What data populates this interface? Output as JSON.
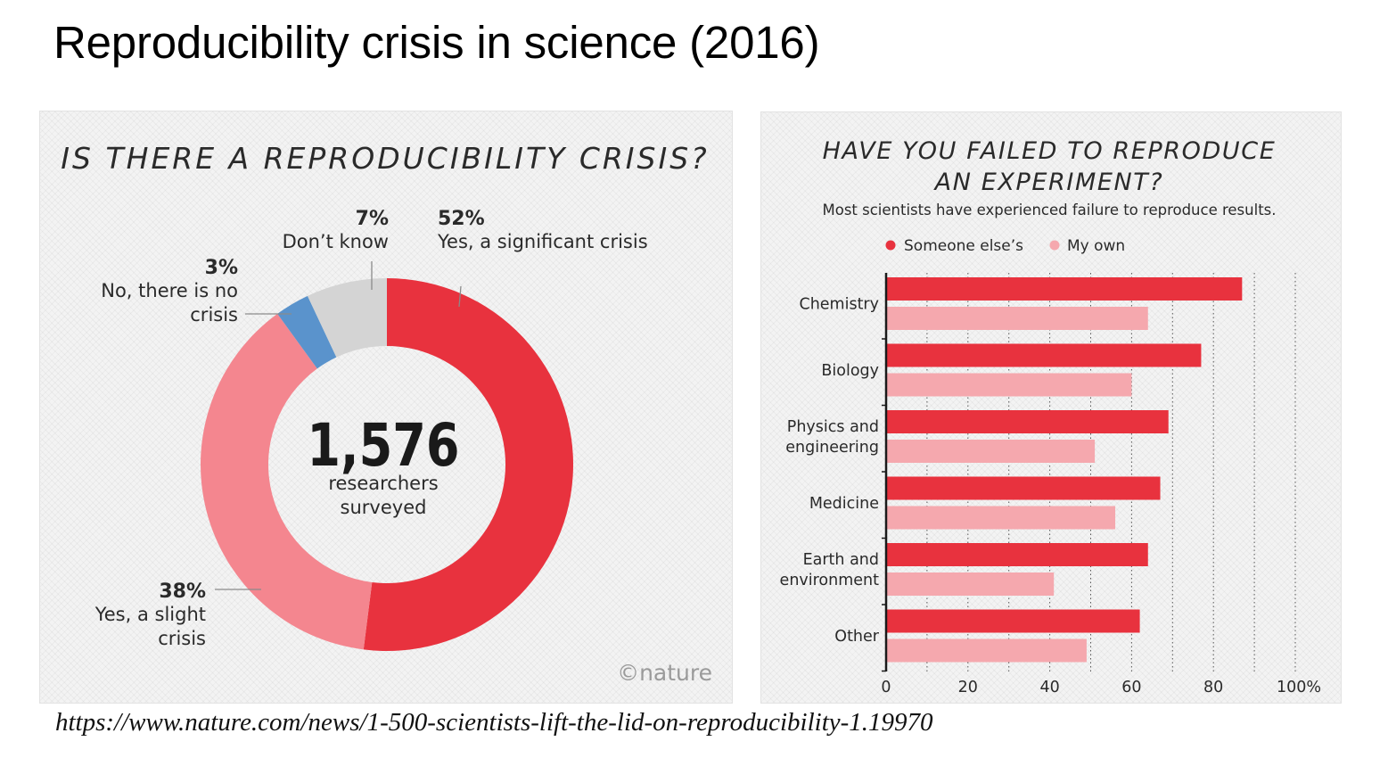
{
  "slide": {
    "title": "Reproducibility crisis in science (2016)",
    "source_url": "https://www.nature.com/news/1-500-scientists-lift-the-lid-on-reproducibility-1.19970"
  },
  "colors": {
    "strong_red": "#e8323e",
    "light_red": "#f4868f",
    "pale_red": "#f5a8ae",
    "blue": "#5a93cc",
    "grey": "#d4d4d4",
    "text_dark": "#222222",
    "axis": "#1a1a1a"
  },
  "chart_data": [
    {
      "type": "pie",
      "title": "IS THERE A REPRODUCIBILITY CRISIS?",
      "center_value": "1,576",
      "center_label_line1": "researchers",
      "center_label_line2": "surveyed",
      "credit": "©nature",
      "slices": [
        {
          "pct_label": "52%",
          "label_lines": [
            "Yes, a significant crisis"
          ],
          "value": 52,
          "color": "#e8323e"
        },
        {
          "pct_label": "38%",
          "label_lines": [
            "Yes, a slight",
            "crisis"
          ],
          "value": 38,
          "color": "#f4868f"
        },
        {
          "pct_label": "3%",
          "label_lines": [
            "No, there is no",
            "crisis"
          ],
          "value": 3,
          "color": "#5a93cc"
        },
        {
          "pct_label": "7%",
          "label_lines": [
            "Don’t know"
          ],
          "value": 7,
          "color": "#d4d4d4"
        }
      ]
    },
    {
      "type": "bar",
      "orientation": "horizontal",
      "title_line1": "HAVE YOU FAILED TO REPRODUCE",
      "title_line2": "AN EXPERIMENT?",
      "subtitle": "Most scientists have experienced failure to reproduce results.",
      "categories": [
        [
          "Chemistry"
        ],
        [
          "Biology"
        ],
        [
          "Physics and",
          "engineering"
        ],
        [
          "Medicine"
        ],
        [
          "Earth and",
          "environment"
        ],
        [
          "Other"
        ]
      ],
      "series": [
        {
          "name": "Someone else’s",
          "color": "#e8323e",
          "values": [
            87,
            77,
            69,
            67,
            64,
            62
          ]
        },
        {
          "name": "My own",
          "color": "#f5a8ae",
          "values": [
            64,
            60,
            51,
            56,
            41,
            49
          ]
        }
      ],
      "xlim": [
        0,
        100
      ],
      "xticks": [
        0,
        20,
        40,
        60,
        80,
        100
      ],
      "xtick_labels": [
        "0",
        "20",
        "40",
        "60",
        "80",
        "100%"
      ],
      "grid": "vertical dotted every 10"
    }
  ]
}
